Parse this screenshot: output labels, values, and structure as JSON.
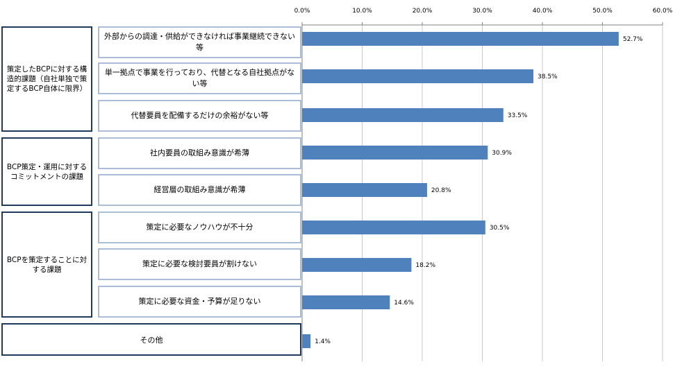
{
  "groups": [
    {
      "label": "策定したBCPに対する構造的課題（自社単独で策定するBCP自体に限界）"
    },
    {
      "label": "BCP策定・運用に対するコミットメントの課題"
    },
    {
      "label": "BCPを策定することに対する課題"
    }
  ],
  "other_label": "その他",
  "chart_data": {
    "type": "bar",
    "orientation": "horizontal",
    "categories": [
      "外部からの調達・供給ができなければ事業継続できない等",
      "単一拠点で事業を行っており、代替となる自社拠点がない等",
      "代替要員を配備するだけの余裕がない等",
      "社内要員の取組み意識が希薄",
      "経営層の取組み意識が希薄",
      "策定に必要なノウハウが不十分",
      "策定に必要な検討要員が割けない",
      "策定に必要な資金・予算が足りない",
      "その他"
    ],
    "values": [
      52.7,
      38.5,
      33.5,
      30.9,
      20.8,
      30.5,
      18.2,
      14.6,
      1.4
    ],
    "value_labels": [
      "52.7%",
      "38.5%",
      "33.5%",
      "30.9%",
      "20.8%",
      "30.5%",
      "18.2%",
      "14.6%",
      "1.4%"
    ],
    "xlim": [
      0,
      60
    ],
    "ticks": [
      0,
      10,
      20,
      30,
      40,
      50,
      60
    ],
    "tick_labels": [
      "0.0%",
      "10.0%",
      "20.0%",
      "30.0%",
      "40.0%",
      "50.0%",
      "60.0%"
    ],
    "axis_position": "top",
    "grid": true,
    "bar_color": "#4f81bd",
    "grid_color": "#c8c8c8"
  }
}
